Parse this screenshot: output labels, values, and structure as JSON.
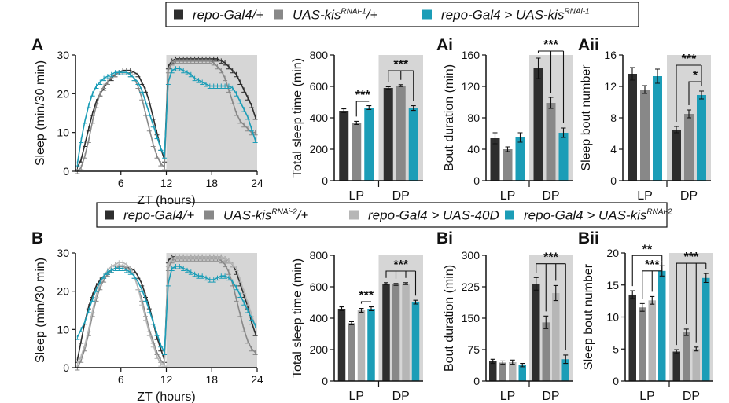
{
  "colors": {
    "dark": "#2e2e2e",
    "mid": "#888888",
    "light": "#b6b6b6",
    "teal": "#1b9db7",
    "shade": "#d6d6d6"
  },
  "legends": [
    {
      "items": [
        {
          "pre": "repo-Gal4/+",
          "sup": "",
          "post": "",
          "color": "dark"
        },
        {
          "pre": "UAS-kis",
          "sup": "RNAi-1",
          "post": "/+",
          "color": "mid"
        },
        {
          "pre": "repo-Gal4 > UAS-kis",
          "sup": "RNAi-1",
          "post": "",
          "color": "teal"
        }
      ]
    },
    {
      "items": [
        {
          "pre": "repo-Gal4/+",
          "sup": "",
          "post": "",
          "color": "dark"
        },
        {
          "pre": "UAS-kis",
          "sup": "RNAi-2",
          "post": "/+",
          "color": "mid"
        },
        {
          "pre": "repo-Gal4 > UAS-40D",
          "sup": "",
          "post": "",
          "color": "light"
        },
        {
          "pre": "repo-Gal4 > UAS-kis",
          "sup": "RNAi-2",
          "post": "",
          "color": "teal"
        }
      ]
    }
  ],
  "chart_data": [
    {
      "panel": "A",
      "type": "line",
      "xlabel": "ZT (hours)",
      "ylabel": "Sleep (min/30 min)",
      "xticks": [
        6,
        12,
        18,
        24
      ],
      "yticks": [
        0,
        10,
        20,
        30
      ],
      "xlim": [
        0,
        24
      ],
      "ylim": [
        0,
        30
      ],
      "dark_phase": [
        12,
        24
      ],
      "series": [
        {
          "name": "repo-Gal4/+",
          "color": "dark",
          "values": [
            1,
            3,
            7,
            11,
            15,
            18,
            20,
            21.5,
            23,
            24,
            25,
            25.5,
            26,
            26,
            26,
            25.5,
            25,
            23,
            21,
            18,
            14,
            10,
            6,
            3,
            27,
            28.5,
            29,
            29,
            29,
            29,
            29,
            29,
            29,
            29,
            29,
            29,
            29,
            29,
            28.5,
            28,
            27,
            26,
            25,
            23,
            21,
            19,
            17,
            14
          ]
        },
        {
          "name": "UAS-kis RNAi-1/+",
          "color": "mid",
          "values": [
            0,
            1,
            4,
            8,
            13,
            17,
            20,
            22,
            23,
            24.5,
            25,
            25.5,
            25.5,
            25.5,
            25,
            24,
            22,
            19,
            15,
            11,
            7,
            4,
            2,
            1,
            26,
            28,
            28.5,
            28.5,
            28.5,
            28.5,
            28.5,
            28.5,
            28.5,
            28.5,
            28.5,
            28.5,
            28,
            27,
            26,
            24,
            21,
            18,
            15,
            13,
            12,
            11,
            10,
            10
          ]
        },
        {
          "name": "repo-Gal4 > UAS-kis RNAi-1",
          "color": "teal",
          "values": [
            2,
            8,
            13,
            17,
            20,
            22,
            23,
            24,
            24.5,
            25,
            25.5,
            25.5,
            25.5,
            25.5,
            25,
            24,
            23,
            21,
            18,
            15,
            12,
            9,
            6,
            4,
            23,
            26,
            26.5,
            26.5,
            26,
            25.5,
            25,
            24,
            23.5,
            23,
            22.5,
            22,
            22,
            22,
            22,
            22,
            22,
            21.5,
            20,
            18,
            16,
            14,
            11,
            8
          ]
        }
      ]
    },
    {
      "panel": "A-total",
      "type": "bar",
      "ylabel": "Total sleep time (min)",
      "categories": [
        "LP",
        "DP"
      ],
      "yticks": [
        0,
        200,
        400,
        600,
        800
      ],
      "ylim": [
        0,
        800
      ],
      "shade_category": "DP",
      "series": [
        {
          "name": "repo-Gal4/+",
          "color": "dark",
          "values": [
            445,
            590
          ],
          "errors": [
            12,
            8
          ]
        },
        {
          "name": "UAS-kis RNAi-1/+",
          "color": "mid",
          "values": [
            368,
            605
          ],
          "errors": [
            10,
            6
          ]
        },
        {
          "name": "repo-Gal4 > UAS-kis RNAi-1",
          "color": "teal",
          "values": [
            465,
            462
          ],
          "errors": [
            12,
            15
          ]
        }
      ],
      "annotations": [
        {
          "text": "***",
          "category": "LP",
          "pairs": [
            [
              1,
              2
            ]
          ],
          "level": 505
        },
        {
          "text": "***",
          "category": "DP",
          "pairs": [
            [
              0,
              2
            ],
            [
              1,
              2
            ]
          ],
          "level": 700
        }
      ]
    },
    {
      "panel": "Ai",
      "type": "bar",
      "ylabel": "Bout duration (min)",
      "categories": [
        "LP",
        "DP"
      ],
      "yticks": [
        0,
        40,
        80,
        120,
        160
      ],
      "ylim": [
        0,
        160
      ],
      "shade_category": "DP",
      "series": [
        {
          "name": "repo-Gal4/+",
          "color": "dark",
          "values": [
            54,
            143
          ],
          "errors": [
            7,
            13
          ]
        },
        {
          "name": "UAS-kis RNAi-1/+",
          "color": "mid",
          "values": [
            40,
            99
          ],
          "errors": [
            3,
            7
          ]
        },
        {
          "name": "repo-Gal4 > UAS-kis RNAi-1",
          "color": "teal",
          "values": [
            55,
            61
          ],
          "errors": [
            6,
            6
          ]
        }
      ],
      "annotations": [
        {
          "text": "***",
          "category": "DP",
          "pairs": [
            [
              0,
              2
            ],
            [
              1,
              2
            ]
          ],
          "level": 165
        }
      ]
    },
    {
      "panel": "Aii",
      "type": "bar",
      "ylabel": "Sleep bout number",
      "categories": [
        "LP",
        "DP"
      ],
      "yticks": [
        0,
        4,
        8,
        12,
        16
      ],
      "ylim": [
        0,
        16
      ],
      "shade_category": "DP",
      "series": [
        {
          "name": "repo-Gal4/+",
          "color": "dark",
          "values": [
            13.6,
            6.5
          ],
          "errors": [
            0.8,
            0.4
          ]
        },
        {
          "name": "UAS-kis RNAi-1/+",
          "color": "mid",
          "values": [
            11.6,
            8.5
          ],
          "errors": [
            0.5,
            0.5
          ]
        },
        {
          "name": "repo-Gal4 > UAS-kis RNAi-1",
          "color": "teal",
          "values": [
            13.3,
            10.9
          ],
          "errors": [
            0.9,
            0.5
          ]
        }
      ],
      "annotations": [
        {
          "text": "***",
          "category": "DP",
          "pairs": [
            [
              0,
              2
            ]
          ],
          "level": 14.7
        },
        {
          "text": "*",
          "category": "DP",
          "pairs": [
            [
              1,
              2
            ]
          ],
          "level": 12.6
        }
      ]
    },
    {
      "panel": "B",
      "type": "line",
      "xlabel": "ZT (hours)",
      "ylabel": "Sleep (min/30 min)",
      "xticks": [
        6,
        12,
        18,
        24
      ],
      "yticks": [
        0,
        10,
        20,
        30
      ],
      "xlim": [
        0,
        24
      ],
      "ylim": [
        0,
        30
      ],
      "dark_phase": [
        12,
        24
      ],
      "series": [
        {
          "name": "repo-Gal4/+",
          "color": "dark",
          "values": [
            2,
            7,
            12,
            16,
            19,
            21.5,
            23,
            24,
            25,
            25.5,
            26,
            26.5,
            26.5,
            26.5,
            26,
            25.5,
            24,
            22,
            19,
            16,
            12,
            8,
            5,
            2,
            28,
            29,
            29,
            29,
            29,
            29,
            29,
            29,
            29,
            29,
            29,
            29,
            29,
            29,
            29,
            28.5,
            28,
            27,
            25,
            22,
            19,
            16,
            12,
            9
          ]
        },
        {
          "name": "UAS-kis RNAi-2/+",
          "color": "mid",
          "values": [
            0,
            2,
            5,
            9,
            14,
            18,
            21,
            23,
            24.5,
            25.5,
            26,
            26.5,
            26.5,
            26,
            25.5,
            24,
            21,
            18,
            14,
            10,
            7,
            4,
            2,
            1,
            26,
            28,
            28.5,
            28.5,
            28.5,
            28.5,
            28.5,
            28.5,
            28.5,
            28.5,
            28.5,
            28.5,
            28.5,
            28.5,
            28,
            27,
            25,
            22,
            18,
            14,
            10,
            7,
            5,
            4
          ]
        },
        {
          "name": "repo-Gal4 > UAS-40D",
          "color": "light",
          "values": [
            1,
            3,
            6,
            10,
            15,
            19,
            22,
            24,
            25.5,
            26.5,
            27,
            27.5,
            27.5,
            27,
            26,
            24,
            21,
            17,
            13,
            9,
            6,
            3,
            1,
            1,
            27,
            28.5,
            29,
            29,
            29,
            29,
            29,
            29,
            29,
            29,
            29,
            29,
            29,
            29,
            29,
            28.5,
            28,
            27,
            26,
            23,
            20,
            17,
            14,
            11
          ]
        },
        {
          "name": "repo-Gal4 > UAS-kis RNAi-2",
          "color": "teal",
          "values": [
            8,
            10,
            12,
            15,
            18,
            20.5,
            22.5,
            24,
            25,
            25.5,
            26,
            26,
            26,
            25.5,
            25,
            24,
            22.5,
            20.5,
            18,
            15,
            12,
            9,
            6,
            4,
            22,
            26,
            26.5,
            26.5,
            26,
            25.5,
            25,
            24.5,
            24,
            24,
            23.5,
            23,
            23,
            23.5,
            24,
            24,
            23.5,
            22.5,
            21,
            19,
            17,
            15,
            13,
            11
          ]
        }
      ]
    },
    {
      "panel": "B-total",
      "type": "bar",
      "ylabel": "Total sleep time (min)",
      "categories": [
        "LP",
        "DP"
      ],
      "yticks": [
        0,
        200,
        400,
        600,
        800
      ],
      "ylim": [
        0,
        800
      ],
      "shade_category": "DP",
      "series": [
        {
          "name": "repo-Gal4/+",
          "color": "dark",
          "values": [
            460,
            620
          ],
          "errors": [
            12,
            6
          ]
        },
        {
          "name": "UAS-kis RNAi-2/+",
          "color": "mid",
          "values": [
            368,
            615
          ],
          "errors": [
            10,
            6
          ]
        },
        {
          "name": "repo-Gal4 > UAS-40D",
          "color": "light",
          "values": [
            450,
            620
          ],
          "errors": [
            12,
            6
          ]
        },
        {
          "name": "repo-Gal4 > UAS-kis RNAi-2",
          "color": "teal",
          "values": [
            460,
            502
          ],
          "errors": [
            12,
            12
          ]
        }
      ],
      "annotations": [
        {
          "text": "***",
          "category": "LP",
          "pairs": [
            [
              2,
              3
            ]
          ],
          "level": 505
        },
        {
          "text": "***",
          "category": "DP",
          "pairs": [
            [
              0,
              3
            ],
            [
              1,
              3
            ],
            [
              2,
              3
            ]
          ],
          "level": 700
        }
      ]
    },
    {
      "panel": "Bi",
      "type": "bar",
      "ylabel": "Bout duration (min)",
      "categories": [
        "LP",
        "DP"
      ],
      "yticks": [
        0,
        75,
        150,
        225,
        300
      ],
      "ylim": [
        0,
        300
      ],
      "shade_category": "DP",
      "series": [
        {
          "name": "repo-Gal4/+",
          "color": "dark",
          "values": [
            47,
            232
          ],
          "errors": [
            5,
            15
          ]
        },
        {
          "name": "UAS-kis RNAi-2/+",
          "color": "mid",
          "values": [
            44,
            140
          ],
          "errors": [
            4,
            15
          ]
        },
        {
          "name": "repo-Gal4 > UAS-40D",
          "color": "light",
          "values": [
            45,
            210
          ],
          "errors": [
            5,
            18
          ]
        },
        {
          "name": "repo-Gal4 > UAS-kis RNAi-2",
          "color": "teal",
          "values": [
            38,
            52
          ],
          "errors": [
            4,
            10
          ]
        }
      ],
      "annotations": [
        {
          "text": "***",
          "category": "DP",
          "pairs": [
            [
              0,
              3
            ],
            [
              1,
              3
            ],
            [
              2,
              3
            ]
          ],
          "level": 280
        }
      ]
    },
    {
      "panel": "Bii",
      "type": "bar",
      "ylabel": "Sleep bout number",
      "categories": [
        "LP",
        "DP"
      ],
      "yticks": [
        0,
        5,
        10,
        15,
        20
      ],
      "ylim": [
        0,
        20
      ],
      "shade_category": "DP",
      "series": [
        {
          "name": "repo-Gal4/+",
          "color": "dark",
          "values": [
            13.5,
            4.6
          ],
          "errors": [
            0.6,
            0.3
          ]
        },
        {
          "name": "UAS-kis RNAi-2/+",
          "color": "mid",
          "values": [
            11.5,
            7.6
          ],
          "errors": [
            0.6,
            0.5
          ]
        },
        {
          "name": "repo-Gal4 > UAS-40D",
          "color": "light",
          "values": [
            12.6,
            5.0
          ],
          "errors": [
            0.6,
            0.3
          ]
        },
        {
          "name": "repo-Gal4 > UAS-kis RNAi-2",
          "color": "teal",
          "values": [
            17.2,
            16.1
          ],
          "errors": [
            0.8,
            0.7
          ]
        }
      ],
      "annotations": [
        {
          "text": "**",
          "category": "LP",
          "pairs": [
            [
              0,
              3
            ]
          ],
          "level": 19.6
        },
        {
          "text": "***",
          "category": "LP",
          "pairs": [
            [
              1,
              3
            ],
            [
              2,
              3
            ]
          ],
          "level": 17.2
        },
        {
          "text": "***",
          "category": "DP",
          "pairs": [
            [
              0,
              3
            ],
            [
              1,
              3
            ],
            [
              2,
              3
            ]
          ],
          "level": 18.4
        }
      ]
    }
  ],
  "panel_labels": [
    "A",
    "Ai",
    "Aii",
    "B",
    "Bi",
    "Bii"
  ]
}
